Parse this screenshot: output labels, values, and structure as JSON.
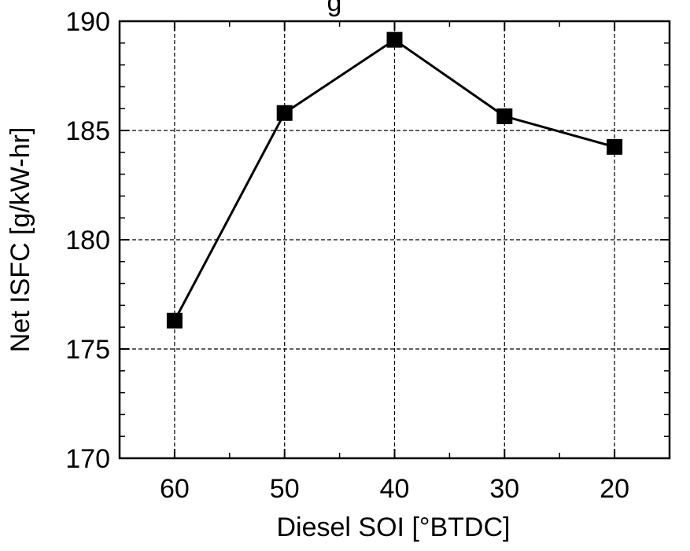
{
  "chart_data": {
    "type": "line",
    "title_visible_fragment": "g",
    "xlabel": "Diesel SOI [°BTDC]",
    "ylabel": "Net ISFC [g/kW-hr]",
    "x_axis_reversed": true,
    "xlim": [
      65,
      15
    ],
    "ylim": [
      170,
      190
    ],
    "xticks": [
      60,
      50,
      40,
      30,
      20
    ],
    "yticks": [
      170,
      175,
      180,
      185,
      190
    ],
    "grid": true,
    "marker": "square",
    "series": [
      {
        "x": [
          60,
          50,
          40,
          30,
          20
        ],
        "y": [
          176.3,
          185.8,
          189.15,
          185.65,
          184.25
        ]
      }
    ],
    "colors": {
      "line": "#000000",
      "marker": "#000000",
      "grid": "#000000"
    }
  }
}
